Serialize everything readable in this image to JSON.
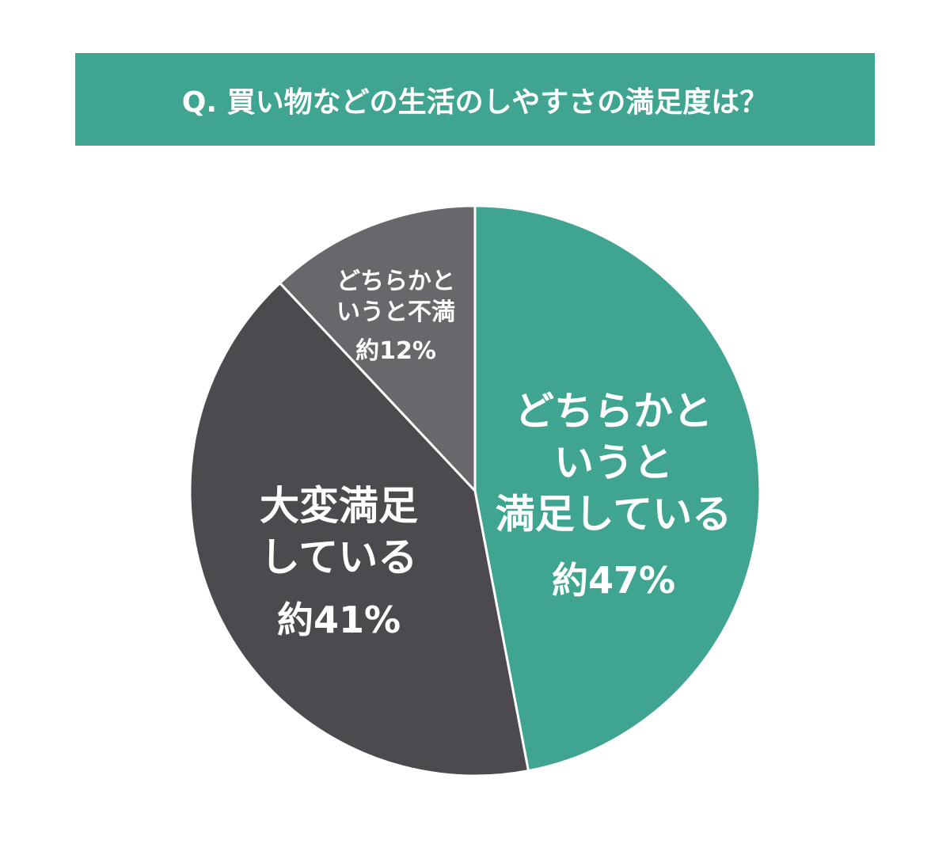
{
  "chart_data": {
    "type": "pie",
    "title": "Q. 買い物などの生活のしやすさの満足度は？",
    "categories": [
      "どちらかと\nいうと\n満足している",
      "大変満足\nしている",
      "どちらかと\nいうと不満"
    ],
    "values": [
      47,
      41,
      12
    ],
    "value_labels": [
      "約47%",
      "約41%",
      "約12%"
    ],
    "colors": [
      "#3fa590",
      "#4c4a4e",
      "#69676b"
    ],
    "title_color": "#3fa590"
  }
}
